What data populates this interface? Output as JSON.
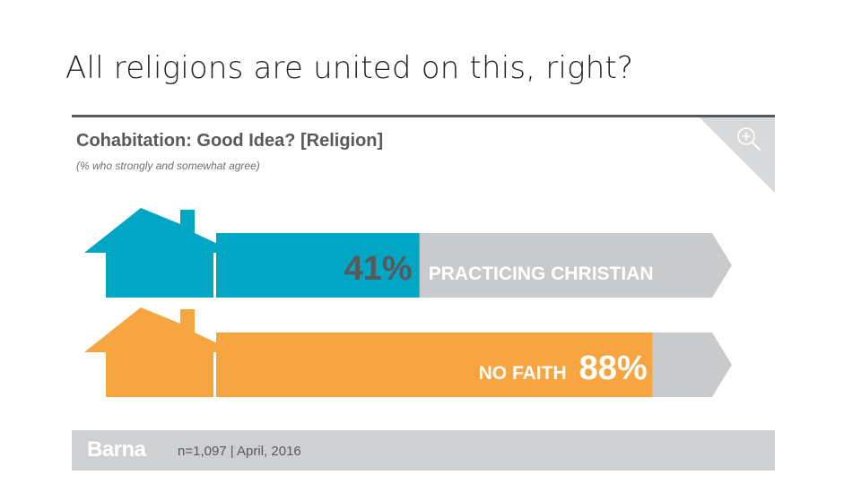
{
  "slide": {
    "title": "All religions are united on this, right?"
  },
  "chart_data": {
    "type": "bar",
    "title": "Cohabitation: Good Idea? [Religion]",
    "subtitle": "(% who strongly and somewhat agree)",
    "unit": "%",
    "xlim": [
      0,
      100
    ],
    "categories": [
      "PRACTICING CHRISTIAN",
      "NO FAITH"
    ],
    "values": [
      41,
      88
    ],
    "value_labels": [
      "41%",
      "88%"
    ],
    "colors": [
      "#00a6c4",
      "#f7a541"
    ],
    "remainder_color": "#c9cacc"
  },
  "footer": {
    "brand": "Barna",
    "meta": "n=1,097 | April, 2016"
  },
  "controls": {
    "zoom_icon": "zoom-in-icon"
  }
}
